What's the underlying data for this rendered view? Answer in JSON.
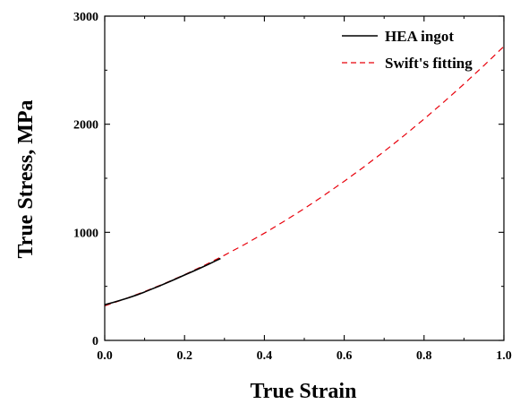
{
  "chart_data": {
    "type": "line",
    "title": "",
    "xlabel": "True Strain",
    "ylabel": "True Stress, MPa",
    "xlim": [
      0,
      1.0
    ],
    "ylim": [
      0,
      3000
    ],
    "x_ticks": [
      "0.0",
      "0.2",
      "0.4",
      "0.6",
      "0.8",
      "1.0"
    ],
    "y_ticks": [
      "0",
      "1000",
      "2000",
      "3000"
    ],
    "grid": false,
    "legend_position": "top-right",
    "series": [
      {
        "name": "HEA ingot",
        "color": "#000000",
        "line_style": "solid",
        "x": [
          0.0,
          0.02,
          0.04,
          0.06,
          0.08,
          0.1,
          0.12,
          0.14,
          0.16,
          0.18,
          0.2,
          0.22,
          0.24,
          0.26,
          0.28,
          0.29
        ],
        "y": [
          330,
          350,
          372,
          395,
          420,
          448,
          478,
          508,
          540,
          572,
          605,
          637,
          670,
          704,
          740,
          757
        ]
      },
      {
        "name": "Swift's fitting",
        "color": "#e8000b",
        "line_style": "dashed",
        "x": [
          0.0,
          0.05,
          0.1,
          0.15,
          0.2,
          0.25,
          0.3,
          0.35,
          0.4,
          0.45,
          0.5,
          0.55,
          0.6,
          0.65,
          0.7,
          0.75,
          0.8,
          0.85,
          0.9,
          0.95,
          1.0
        ],
        "y": [
          320,
          383,
          452,
          527,
          608,
          695,
          788,
          887,
          992,
          1103,
          1220,
          1343,
          1472,
          1607,
          1748,
          1895,
          2048,
          2207,
          2372,
          2543,
          2720
        ]
      }
    ]
  }
}
